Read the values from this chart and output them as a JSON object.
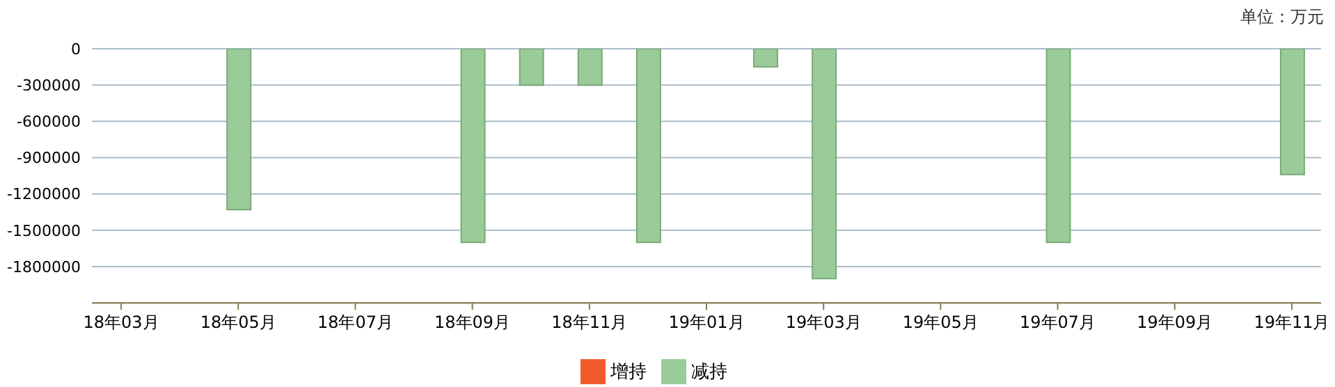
{
  "chart_data": {
    "type": "bar",
    "annotations": [
      "单位：万元"
    ],
    "categories": [
      "18年03月",
      null,
      "18年05月",
      null,
      "18年07月",
      null,
      "18年09月",
      null,
      "18年11月",
      null,
      "19年01月",
      null,
      "19年03月",
      null,
      "19年05月",
      null,
      "19年07月",
      null,
      "19年09月",
      null,
      "19年11月"
    ],
    "series": [
      {
        "name": "增持",
        "color": "#f15a2b",
        "values": [
          null,
          null,
          null,
          null,
          null,
          null,
          null,
          null,
          null,
          null,
          null,
          null,
          null,
          null,
          null,
          null,
          null,
          null,
          null,
          null,
          null
        ]
      },
      {
        "name": "减持",
        "color": "#99cc99",
        "values": [
          null,
          null,
          -1330000,
          null,
          null,
          null,
          -1600000,
          -300000,
          -300000,
          -1600000,
          null,
          -150000,
          -1900000,
          null,
          null,
          null,
          -1600000,
          null,
          null,
          null,
          -1040000
        ]
      }
    ],
    "stacked": true,
    "ylim": [
      -2100000,
      0
    ],
    "yticks": [
      0,
      -300000,
      -600000,
      -900000,
      -1200000,
      -1500000,
      -1800000
    ],
    "grid": "y",
    "legend": "bottom"
  }
}
